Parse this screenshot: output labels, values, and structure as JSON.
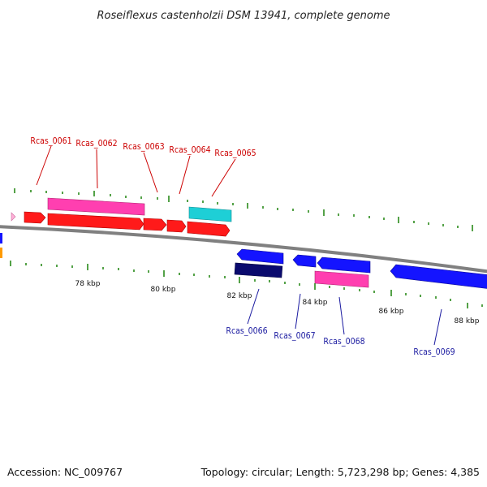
{
  "title": "Roseiflexus castenholzii DSM 13941, complete genome",
  "footer": {
    "accession": "Accession: NC_009767",
    "topology": "Topology: circular; Length: 5,723,298 bp; Genes: 4,385"
  },
  "colors": {
    "red": "#ff1a1a",
    "magenta": "#ff3fb0",
    "cyan": "#1ecfd6",
    "blue": "#1414ff",
    "navy": "#0a0a6e",
    "pink": "#ffb0d8",
    "orange": "#ff9a00",
    "tick_green": "#2a8a1a"
  },
  "axis": {
    "labels": [
      "78 kbp",
      "80 kbp",
      "82 kbp",
      "84 kbp",
      "86 kbp",
      "88 kbp"
    ]
  },
  "genes_top": [
    {
      "id": "Rcas_0061",
      "label": "Rcas_0061"
    },
    {
      "id": "Rcas_0062",
      "label": "Rcas_0062"
    },
    {
      "id": "Rcas_0063",
      "label": "Rcas_0063"
    },
    {
      "id": "Rcas_0064",
      "label": "Rcas_0064"
    },
    {
      "id": "Rcas_0065",
      "label": "Rcas_0065"
    }
  ],
  "genes_bottom": [
    {
      "id": "Rcas_0066",
      "label": "Rcas_0066"
    },
    {
      "id": "Rcas_0067",
      "label": "Rcas_0067"
    },
    {
      "id": "Rcas_0068",
      "label": "Rcas_0068"
    },
    {
      "id": "Rcas_0069",
      "label": "Rcas_0069"
    }
  ]
}
